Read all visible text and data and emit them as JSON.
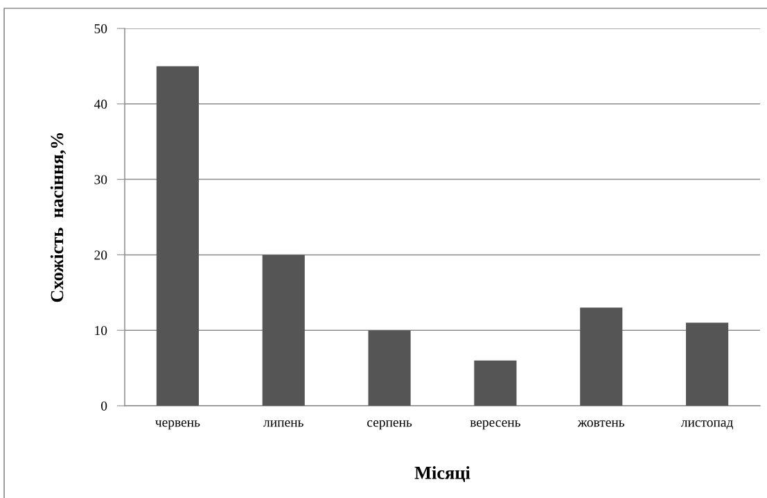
{
  "chart_data": {
    "type": "bar",
    "xlabel": "Місяці",
    "ylabel": "Схожість  насіння,%",
    "categories": [
      "червень",
      "липень",
      "серпень",
      "вересень",
      "жовтень",
      "листопад"
    ],
    "values": [
      45,
      20,
      10,
      6,
      13,
      11
    ],
    "color": "#555555",
    "ylim": [
      0,
      50
    ],
    "yticks": [
      0,
      10,
      20,
      30,
      40,
      50
    ],
    "grid": "y",
    "legend": false
  }
}
